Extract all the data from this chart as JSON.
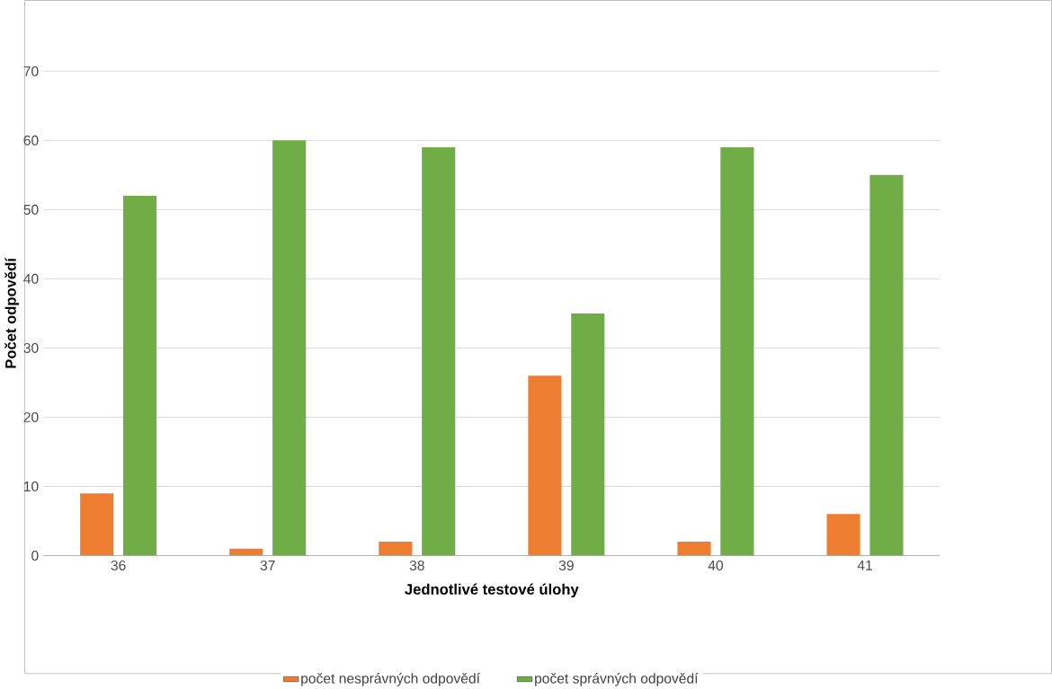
{
  "chart_data": {
    "type": "bar",
    "xlabel": "Jednotlivé testové úlohy",
    "ylabel": "Počet odpovědí",
    "categories": [
      "36",
      "37",
      "38",
      "39",
      "40",
      "41"
    ],
    "series": [
      {
        "name": "počet nesprávných odpovědí",
        "color": "#ed7d31",
        "values": [
          9,
          1,
          2,
          26,
          2,
          6
        ]
      },
      {
        "name": "počet správných odpovědí",
        "color": "#70ad47",
        "values": [
          52,
          60,
          59,
          35,
          59,
          55
        ]
      }
    ],
    "ylim": [
      0,
      70
    ],
    "yticks": [
      0,
      10,
      20,
      30,
      40,
      50,
      60,
      70
    ],
    "grid": "y",
    "legend": "bottom"
  }
}
